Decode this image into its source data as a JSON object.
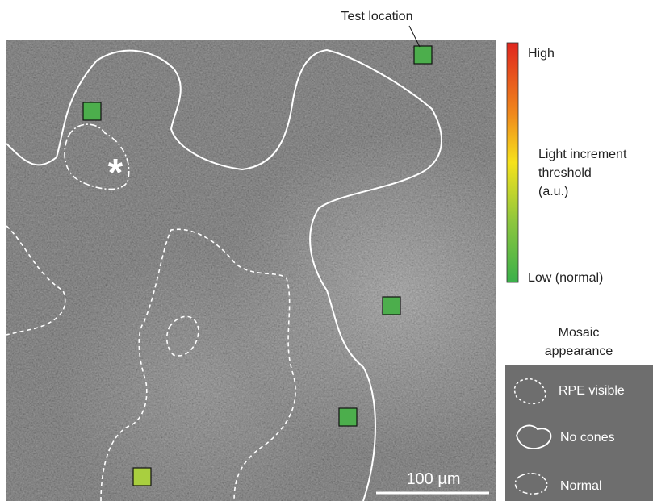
{
  "annotation": {
    "test_location": "Test location",
    "asterisk": "*",
    "scale_bar": "100 µm"
  },
  "colorbar": {
    "high": "High",
    "title_lines": [
      "Light increment",
      "threshold",
      "(a.u.)"
    ],
    "low": "Low (normal)"
  },
  "legend": {
    "title_lines": [
      "Mosaic",
      "appearance"
    ],
    "items": [
      "RPE visible",
      "No cones",
      "Normal"
    ]
  }
}
